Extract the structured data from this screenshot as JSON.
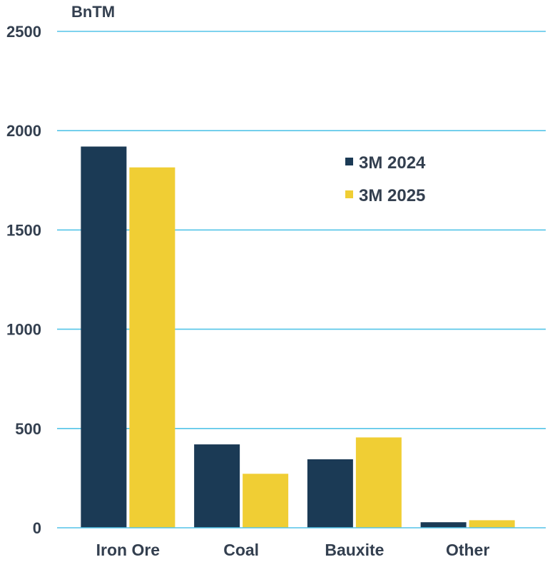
{
  "chart_data": {
    "type": "bar",
    "unit_label": "BnTM",
    "categories": [
      "Iron Ore",
      "Coal",
      "Bauxite",
      "Other"
    ],
    "series": [
      {
        "name": "3M 2024",
        "color": "#1b3a55",
        "values": [
          1920,
          420,
          345,
          28
        ]
      },
      {
        "name": "3M 2025",
        "color": "#f0ce34",
        "values": [
          1815,
          272,
          455,
          38
        ]
      }
    ],
    "ylim": [
      0,
      2500
    ],
    "yticks": [
      0,
      500,
      1000,
      1500,
      2000,
      2500
    ],
    "ytick_labels": [
      "0",
      "500",
      "1000",
      "1500",
      "2000",
      "2500"
    ],
    "grid": true,
    "legend_position": "upper-right"
  }
}
